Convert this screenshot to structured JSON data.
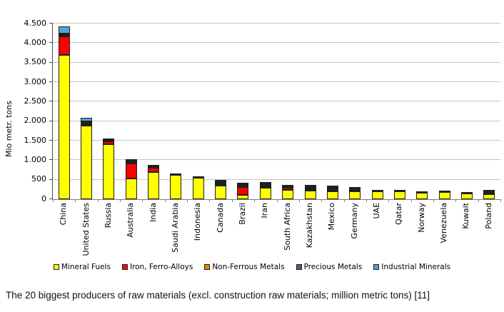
{
  "caption": "The 20 biggest producers of raw materials (excl. construction raw materials; million metric tons) [11]",
  "chart_data": {
    "type": "bar",
    "subtype": "stacked-vertical",
    "title": "",
    "xlabel": "",
    "ylabel": "Mio metr. tons",
    "ylim": [
      0,
      4500
    ],
    "ytick_step": 500,
    "ytick_labels": [
      "0",
      "500",
      "1.000",
      "1.500",
      "2.000",
      "2.500",
      "3.000",
      "3.500",
      "4.000",
      "4.500"
    ],
    "grid": "horizontal",
    "legend_position": "bottom",
    "categories": [
      "China",
      "United States",
      "Russia",
      "Australia",
      "India",
      "Saudi Arabia",
      "Indonesia",
      "Canada",
      "Brazil",
      "Iran",
      "South Africa",
      "Kazakhstan",
      "Mexico",
      "Germany",
      "UAE",
      "Qatar",
      "Norway",
      "Venezuela",
      "Kuwait",
      "Poland"
    ],
    "series": [
      {
        "name": "Mineral Fuels",
        "color": "#FFFF00",
        "values": [
          3700,
          1890,
          1400,
          530,
          700,
          620,
          550,
          350,
          110,
          300,
          230,
          220,
          200,
          195,
          195,
          195,
          170,
          175,
          155,
          130
        ]
      },
      {
        "name": "Iron, Ferro-Alloys",
        "color": "#FF0000",
        "values": [
          470,
          30,
          80,
          390,
          100,
          0,
          0,
          40,
          200,
          15,
          60,
          15,
          10,
          10,
          0,
          0,
          0,
          0,
          0,
          10
        ]
      },
      {
        "name": "Non-Ferrous Metals",
        "color": "#F08000",
        "values": [
          30,
          10,
          0,
          10,
          0,
          0,
          0,
          10,
          10,
          5,
          5,
          5,
          10,
          0,
          0,
          0,
          0,
          0,
          0,
          0
        ]
      },
      {
        "name": "Precious Metals",
        "color": "#585889",
        "values": [
          30,
          20,
          20,
          10,
          10,
          0,
          0,
          15,
          20,
          10,
          5,
          5,
          5,
          10,
          0,
          0,
          0,
          0,
          0,
          5
        ]
      },
      {
        "name": "Industrial Minerals",
        "color": "#5AA2D4",
        "values": [
          180,
          80,
          20,
          20,
          30,
          10,
          10,
          15,
          20,
          15,
          0,
          5,
          10,
          15,
          5,
          5,
          5,
          5,
          5,
          5
        ]
      }
    ]
  }
}
